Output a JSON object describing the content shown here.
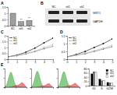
{
  "chart_data": [
    {
      "type": "bar",
      "title": "A",
      "categories": [
        "NC",
        "sh1",
        "sh2"
      ],
      "values": [
        1,
        0.33,
        0.42
      ],
      "color": "#9e9e9e",
      "ylim": [
        0,
        1.5
      ],
      "yticks": [
        0,
        0.5,
        1,
        1.5
      ],
      "annotations": [
        {
          "text": "**",
          "x": "sh1"
        },
        {
          "text": "**",
          "x": "sh2"
        }
      ]
    },
    {
      "type": "line",
      "title": "C",
      "x": [
        0,
        1,
        2,
        3,
        4,
        5
      ],
      "xlim": [
        0,
        5
      ],
      "xticks": [
        0,
        1,
        2,
        3,
        4,
        5
      ],
      "ylim": [
        0,
        2
      ],
      "yticks": [
        0,
        0.5,
        1,
        1.5,
        2
      ],
      "legend": "upper left",
      "marker": "circle",
      "series": [
        {
          "name": "NC",
          "color": "#000000",
          "values": [
            0.2,
            0.35,
            0.6,
            0.95,
            1.4,
            1.8
          ]
        },
        {
          "name": "sh1",
          "color": "#777777",
          "values": [
            0.2,
            0.3,
            0.45,
            0.65,
            0.9,
            1.1
          ]
        },
        {
          "name": "sh2",
          "color": "#bbbbbb",
          "values": [
            0.2,
            0.3,
            0.5,
            0.7,
            1.0,
            1.25
          ]
        }
      ]
    },
    {
      "type": "line",
      "title": "D",
      "x": [
        0,
        1,
        2,
        3,
        4,
        5
      ],
      "xlim": [
        0,
        5
      ],
      "xticks": [
        0,
        1,
        2,
        3,
        4,
        5
      ],
      "ylim": [
        0,
        1.5
      ],
      "yticks": [
        0,
        0.5,
        1,
        1.5
      ],
      "legend": "upper left",
      "marker": "circle",
      "series": [
        {
          "name": "NC",
          "color": "#000000",
          "values": [
            0.15,
            0.3,
            0.5,
            0.75,
            1.0,
            1.3
          ]
        },
        {
          "name": "sh1",
          "color": "#777777",
          "values": [
            0.15,
            0.25,
            0.35,
            0.5,
            0.65,
            0.8
          ]
        },
        {
          "name": "sh2",
          "color": "#bbbbbb",
          "values": [
            0.15,
            0.25,
            0.4,
            0.55,
            0.7,
            0.9
          ]
        }
      ]
    },
    {
      "type": "area",
      "title": "E",
      "x": [
        0,
        1,
        2,
        3,
        4,
        5,
        6,
        7,
        8,
        9,
        10
      ],
      "xlim": [
        0,
        10
      ],
      "xticks": [
        0,
        5,
        10
      ],
      "ylim": [
        0,
        100
      ],
      "yticks": [
        0,
        50,
        100
      ],
      "tick_labels": false,
      "series": [
        {
          "color": "#2ca02c",
          "values": [
            0,
            10,
            60,
            95,
            40,
            8,
            3,
            2,
            1,
            0,
            0
          ]
        },
        {
          "color": "#d62728",
          "values": [
            0,
            0,
            0,
            2,
            5,
            8,
            10,
            15,
            30,
            12,
            1
          ]
        }
      ]
    },
    {
      "type": "area",
      "x": [
        0,
        1,
        2,
        3,
        4,
        5,
        6,
        7,
        8,
        9,
        10
      ],
      "xlim": [
        0,
        10
      ],
      "xticks": [
        0,
        5,
        10
      ],
      "ylim": [
        0,
        100
      ],
      "yticks": [
        0,
        50,
        100
      ],
      "tick_labels": false,
      "series": [
        {
          "color": "#2ca02c",
          "values": [
            0,
            12,
            70,
            98,
            45,
            7,
            3,
            2,
            1,
            0,
            0
          ]
        },
        {
          "color": "#d62728",
          "values": [
            0,
            0,
            0,
            2,
            4,
            6,
            8,
            12,
            24,
            10,
            1
          ]
        }
      ]
    },
    {
      "type": "area",
      "x": [
        0,
        1,
        2,
        3,
        4,
        5,
        6,
        7,
        8,
        9,
        10
      ],
      "xlim": [
        0,
        10
      ],
      "xticks": [
        0,
        5,
        10
      ],
      "ylim": [
        0,
        100
      ],
      "yticks": [
        0,
        50,
        100
      ],
      "tick_labels": false,
      "series": [
        {
          "color": "#2ca02c",
          "values": [
            0,
            11,
            66,
            96,
            43,
            8,
            3,
            2,
            1,
            0,
            0
          ]
        },
        {
          "color": "#d62728",
          "values": [
            0,
            0,
            0,
            2,
            4,
            7,
            9,
            13,
            26,
            11,
            1
          ]
        }
      ]
    },
    {
      "type": "bar",
      "categories": [
        "G1",
        "S",
        "G2/M"
      ],
      "ylim": [
        0,
        80
      ],
      "yticks": [
        0,
        20,
        40,
        60,
        80
      ],
      "legend": "upper right",
      "series": [
        {
          "name": "NC",
          "color": "#000000",
          "values": [
            55,
            30,
            15
          ]
        },
        {
          "name": "sh1",
          "color": "#888888",
          "values": [
            65,
            22,
            13
          ]
        },
        {
          "name": "sh2",
          "color": "#ffffff",
          "values": [
            62,
            25,
            13
          ]
        }
      ]
    }
  ],
  "blot": {
    "title": "B",
    "rows": [
      "SIRT1",
      "GAPDH"
    ],
    "lanes": [
      "NC",
      "sh1",
      "sh2"
    ]
  }
}
